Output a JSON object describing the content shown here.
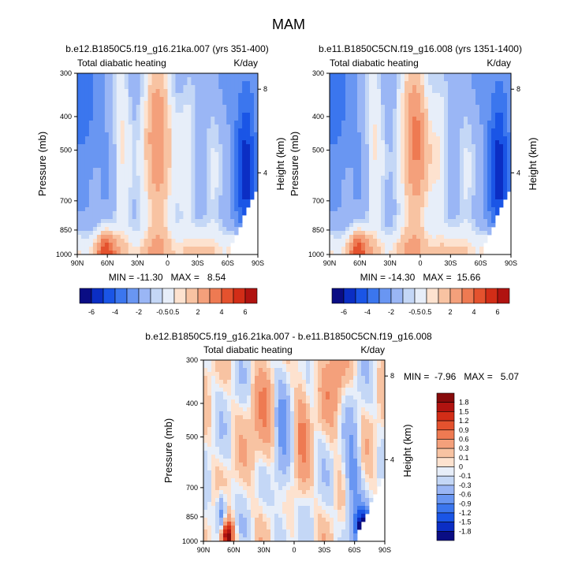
{
  "figure_title": "MAM",
  "chart_data": [
    {
      "type": "heatmap",
      "title": "b.e12.B1850C5.f19_g16.21ka.007 (yrs 351-400)",
      "left_subtitle": "Total diabatic heating",
      "right_subtitle": "K/day",
      "xlabel": "",
      "ylabel": "Pressure (mb)",
      "right_ylabel": "Height (km)",
      "x_ticks": [
        "90N",
        "60N",
        "30N",
        "0",
        "30S",
        "60S",
        "90S"
      ],
      "x_range": [
        90,
        -90
      ],
      "y_ticks": [
        "300",
        "400",
        "500",
        "700",
        "850",
        "1000"
      ],
      "y_tick_values": [
        300,
        400,
        500,
        700,
        850,
        1000
      ],
      "y_range": [
        300,
        1000
      ],
      "height_ticks": [
        "8",
        "4"
      ],
      "height_tick_values": [
        8,
        4
      ],
      "stats": "MIN = -11.30   MAX =   8.54",
      "min": -11.3,
      "max": 8.54,
      "colorbar_levels": [
        -6,
        -5,
        -4,
        -3,
        -2,
        -1,
        -0.5,
        0.5,
        1,
        2,
        3,
        4,
        5,
        6
      ],
      "colorbar_labels": [
        "-6",
        "-4",
        "-2",
        "-0.5",
        "0.5",
        "2",
        "4",
        "6"
      ]
    },
    {
      "type": "heatmap",
      "title": "b.e11.B1850C5CN.f19_g16.008 (yrs 1351-1400)",
      "left_subtitle": "Total diabatic heating",
      "right_subtitle": "K/day",
      "xlabel": "",
      "ylabel": "Pressure (mb)",
      "right_ylabel": "Height (km)",
      "x_ticks": [
        "90N",
        "60N",
        "30N",
        "0",
        "30S",
        "60S",
        "90S"
      ],
      "x_range": [
        90,
        -90
      ],
      "y_ticks": [
        "300",
        "400",
        "500",
        "700",
        "850",
        "1000"
      ],
      "y_tick_values": [
        300,
        400,
        500,
        700,
        850,
        1000
      ],
      "y_range": [
        300,
        1000
      ],
      "height_ticks": [
        "8",
        "4"
      ],
      "height_tick_values": [
        8,
        4
      ],
      "stats": "MIN = -14.30   MAX =  15.66",
      "min": -14.3,
      "max": 15.66,
      "colorbar_levels": [
        -6,
        -5,
        -4,
        -3,
        -2,
        -1,
        -0.5,
        0.5,
        1,
        2,
        3,
        4,
        5,
        6
      ],
      "colorbar_labels": [
        "-6",
        "-4",
        "-2",
        "-0.5",
        "0.5",
        "2",
        "4",
        "6"
      ]
    },
    {
      "type": "heatmap",
      "title": "b.e12.B1850C5.f19_g16.21ka.007 - b.e11.B1850C5CN.f19_g16.008",
      "left_subtitle": "Total diabatic heating",
      "right_subtitle": "K/day",
      "xlabel": "",
      "ylabel": "Pressure (mb)",
      "right_ylabel": "Height (km)",
      "x_ticks": [
        "90N",
        "60N",
        "30N",
        "0",
        "30S",
        "60S",
        "90S"
      ],
      "x_range": [
        90,
        -90
      ],
      "y_ticks": [
        "300",
        "400",
        "500",
        "700",
        "850",
        "1000"
      ],
      "y_tick_values": [
        300,
        400,
        500,
        700,
        850,
        1000
      ],
      "y_range": [
        300,
        1000
      ],
      "height_ticks": [
        "8",
        "4"
      ],
      "height_tick_values": [
        8,
        4
      ],
      "stats": "MIN =  -7.96   MAX =   5.07",
      "min": -7.96,
      "max": 5.07,
      "colorbar_levels": [
        -1.8,
        -1.5,
        -1.2,
        -0.9,
        -0.6,
        -0.3,
        -0.1,
        0,
        0.1,
        0.3,
        0.6,
        0.9,
        1.2,
        1.5,
        1.8
      ],
      "colorbar_labels": [
        "1.8",
        "1.5",
        "1.2",
        "0.9",
        "0.6",
        "0.3",
        "0.1",
        "0",
        "-0.1",
        "-0.3",
        "-0.6",
        "-0.9",
        "-1.2",
        "-1.5",
        "-1.8"
      ]
    }
  ],
  "palette": [
    "#0a0d84",
    "#0b2ec4",
    "#1a55e6",
    "#3b76ee",
    "#6996f2",
    "#9ab6f5",
    "#c4d7f6",
    "#e7eef9",
    "#fde2cf",
    "#f8c3a2",
    "#f4a07b",
    "#ee7a52",
    "#e4522e",
    "#d22d17",
    "#b01310",
    "#870a0b"
  ]
}
